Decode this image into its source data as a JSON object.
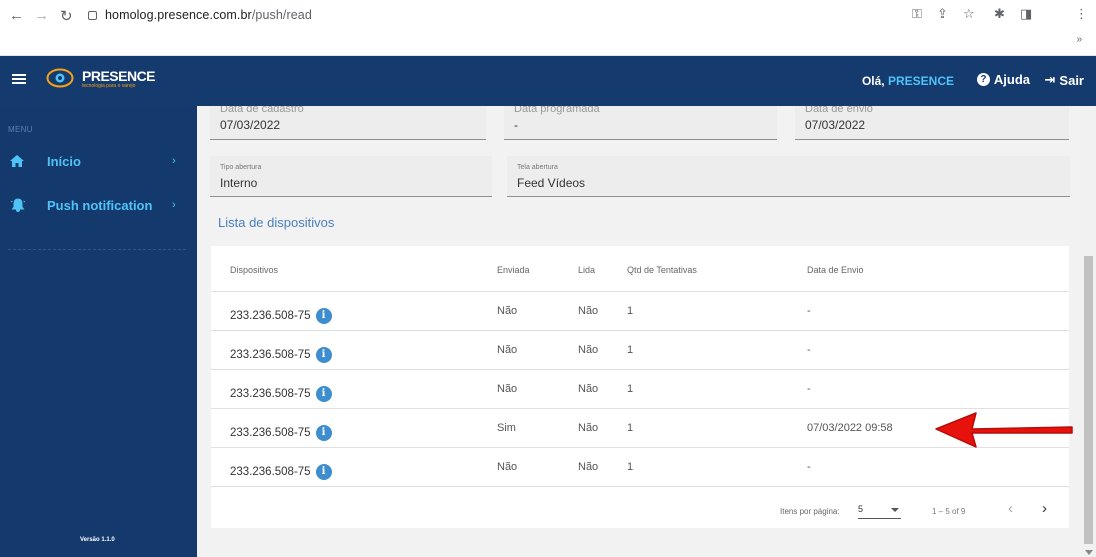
{
  "browser": {
    "url_host": "homolog.presence.com.br",
    "url_path": "/push/read"
  },
  "header": {
    "logo_text": "PRESENCE",
    "logo_subtitle": "tecnologia para o varejo",
    "greeting": "Olá,",
    "user_name": "PRESENCE",
    "help_label": "Ajuda",
    "logout_label": "Sair"
  },
  "sidebar": {
    "menu_label": "MENU",
    "items": [
      {
        "label": "Início",
        "icon": "home-icon"
      },
      {
        "label": "Push notification",
        "icon": "bell-icon"
      }
    ],
    "version": "Versão 1.1.0"
  },
  "form": {
    "fields": [
      {
        "label": "Data de cadastro",
        "value": "07/03/2022"
      },
      {
        "label": "Data programada",
        "value": "-"
      },
      {
        "label": "Data de envio",
        "value": "07/03/2022"
      },
      {
        "label": "Tipo abertura",
        "value": "Interno"
      },
      {
        "label": "Tela abertura",
        "value": "Feed Vídeos"
      }
    ]
  },
  "devices": {
    "title": "Lista de dispositivos",
    "columns": [
      "Dispositivos",
      "Enviada",
      "Lida",
      "Qtd de Tentativas",
      "Data de Envio"
    ],
    "rows": [
      {
        "device": "233.236.508-75",
        "sent": "Não",
        "read": "Não",
        "attempts": "1",
        "date": "-"
      },
      {
        "device": "233.236.508-75",
        "sent": "Não",
        "read": "Não",
        "attempts": "1",
        "date": "-"
      },
      {
        "device": "233.236.508-75",
        "sent": "Não",
        "read": "Não",
        "attempts": "1",
        "date": "-"
      },
      {
        "device": "233.236.508-75",
        "sent": "Sim",
        "read": "Não",
        "attempts": "1",
        "date": "07/03/2022 09:58"
      },
      {
        "device": "233.236.508-75",
        "sent": "Não",
        "read": "Não",
        "attempts": "1",
        "date": "-"
      }
    ],
    "info_icon": "i"
  },
  "pagination": {
    "items_per_page_label": "Itens por página:",
    "items_per_page": "5",
    "range": "1 – 5 of 9"
  },
  "colors": {
    "header_bg": "#153a6e",
    "accent": "#4fc3f7",
    "annotation_arrow": "#e8120c"
  }
}
